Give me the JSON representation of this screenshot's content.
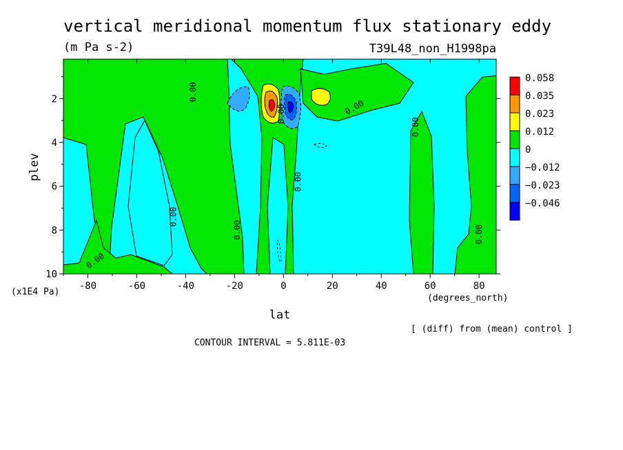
{
  "chart_data": {
    "type": "contour",
    "title": "vertical meridional momentum flux stationary eddy",
    "subtitle": "(m Pa s-2)",
    "run_label": "T39L48_non_H1998pa",
    "xlabel": "lat",
    "x_units": "(degrees_north)",
    "ylabel": "plev",
    "y_units": "(x1E4 Pa)",
    "xlim": [
      -90,
      87
    ],
    "ylim": [
      10,
      0.2
    ],
    "x_ticks": [
      -80,
      -60,
      -40,
      -20,
      0,
      20,
      40,
      60,
      80
    ],
    "x_tick_labels": [
      "-80",
      "-60",
      "-40",
      "-20",
      "0",
      "20",
      "40",
      "60",
      "80"
    ],
    "y_ticks": [
      2,
      4,
      6,
      8,
      10
    ],
    "y_tick_labels": [
      "2",
      "4",
      "6",
      "8",
      "10"
    ],
    "contour_interval_label": "CONTOUR INTERVAL = 5.811E-03",
    "note": "[ (diff) from (mean) control ]",
    "levels": [
      {
        "label": "0.058",
        "color": "#ff0000"
      },
      {
        "label": "0.035",
        "color": "#ff9900"
      },
      {
        "label": "0.023",
        "color": "#ffff00"
      },
      {
        "label": "0.012",
        "color": "#00e600"
      },
      {
        "label": "0",
        "color": "#00ffff"
      },
      {
        "label": "−0.012",
        "color": "#33aaff"
      },
      {
        "label": "−0.023",
        "color": "#0066ff"
      },
      {
        "label": "−0.046",
        "color": "#0000ff"
      }
    ],
    "contour_labels": [
      {
        "text": "0.00",
        "lon": -77,
        "plev": 9.4,
        "angle": -35
      },
      {
        "text": "0.00",
        "lon": -45,
        "plev": 7.4,
        "angle": -90
      },
      {
        "text": "0.00",
        "lon": -37,
        "plev": 1.7,
        "angle": -90
      },
      {
        "text": "0.00",
        "lon": -19,
        "plev": 8.0,
        "angle": -90
      },
      {
        "text": "0.00",
        "lon": -1,
        "plev": 2.7,
        "angle": -90
      },
      {
        "text": "0.00",
        "lon": 6,
        "plev": 5.8,
        "angle": -90
      },
      {
        "text": "0.00",
        "lon": 29,
        "plev": 2.4,
        "angle": -30
      },
      {
        "text": "0.00",
        "lon": 54,
        "plev": 3.3,
        "angle": -90
      },
      {
        "text": "0.00",
        "lon": 80,
        "plev": 8.2,
        "angle": -90
      }
    ]
  }
}
